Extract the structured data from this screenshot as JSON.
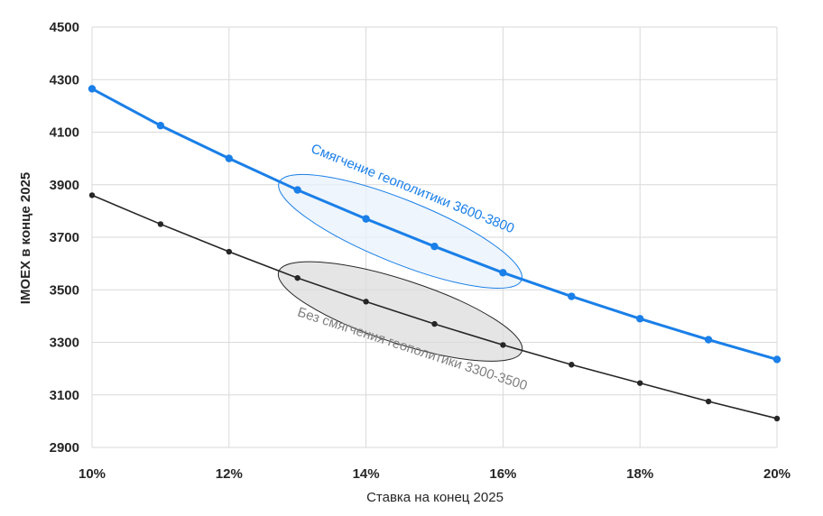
{
  "chart_data": {
    "type": "line",
    "xlabel": "Ставка на конец 2025",
    "ylabel": "IMOEX в конце 2025",
    "x": [
      10,
      11,
      12,
      13,
      14,
      15,
      16,
      17,
      18,
      19,
      20
    ],
    "x_ticks": [
      10,
      12,
      14,
      16,
      18,
      20
    ],
    "x_tick_labels": [
      "10%",
      "12%",
      "14%",
      "16%",
      "18%",
      "20%"
    ],
    "y_ticks": [
      2900,
      3100,
      3300,
      3500,
      3700,
      3900,
      4100,
      4300,
      4500
    ],
    "xlim": [
      10,
      20
    ],
    "ylim": [
      2900,
      4500
    ],
    "grid": true,
    "series": [
      {
        "values": [
          4265,
          4125,
          4000,
          3880,
          3770,
          3665,
          3565,
          3475,
          3390,
          3310,
          3235
        ],
        "color": "#1a7fe8"
      },
      {
        "values": [
          3860,
          3750,
          3645,
          3545,
          3455,
          3370,
          3290,
          3215,
          3145,
          3075,
          3010
        ],
        "color": "#262626"
      }
    ],
    "annotations": [
      {
        "text": "Смягчение геополитики 3600-3800",
        "color": "#1a7fe8",
        "fill": "#e8f1fb",
        "stroke": "#1a7fe8",
        "range": [
          13,
          16
        ],
        "series": 0
      },
      {
        "text": "Без смягчения геополитики 3300-3500",
        "color": "#7f7f7f",
        "fill": "#dcdcdc",
        "stroke": "#262626",
        "range": [
          13,
          16
        ],
        "series": 1
      }
    ]
  }
}
